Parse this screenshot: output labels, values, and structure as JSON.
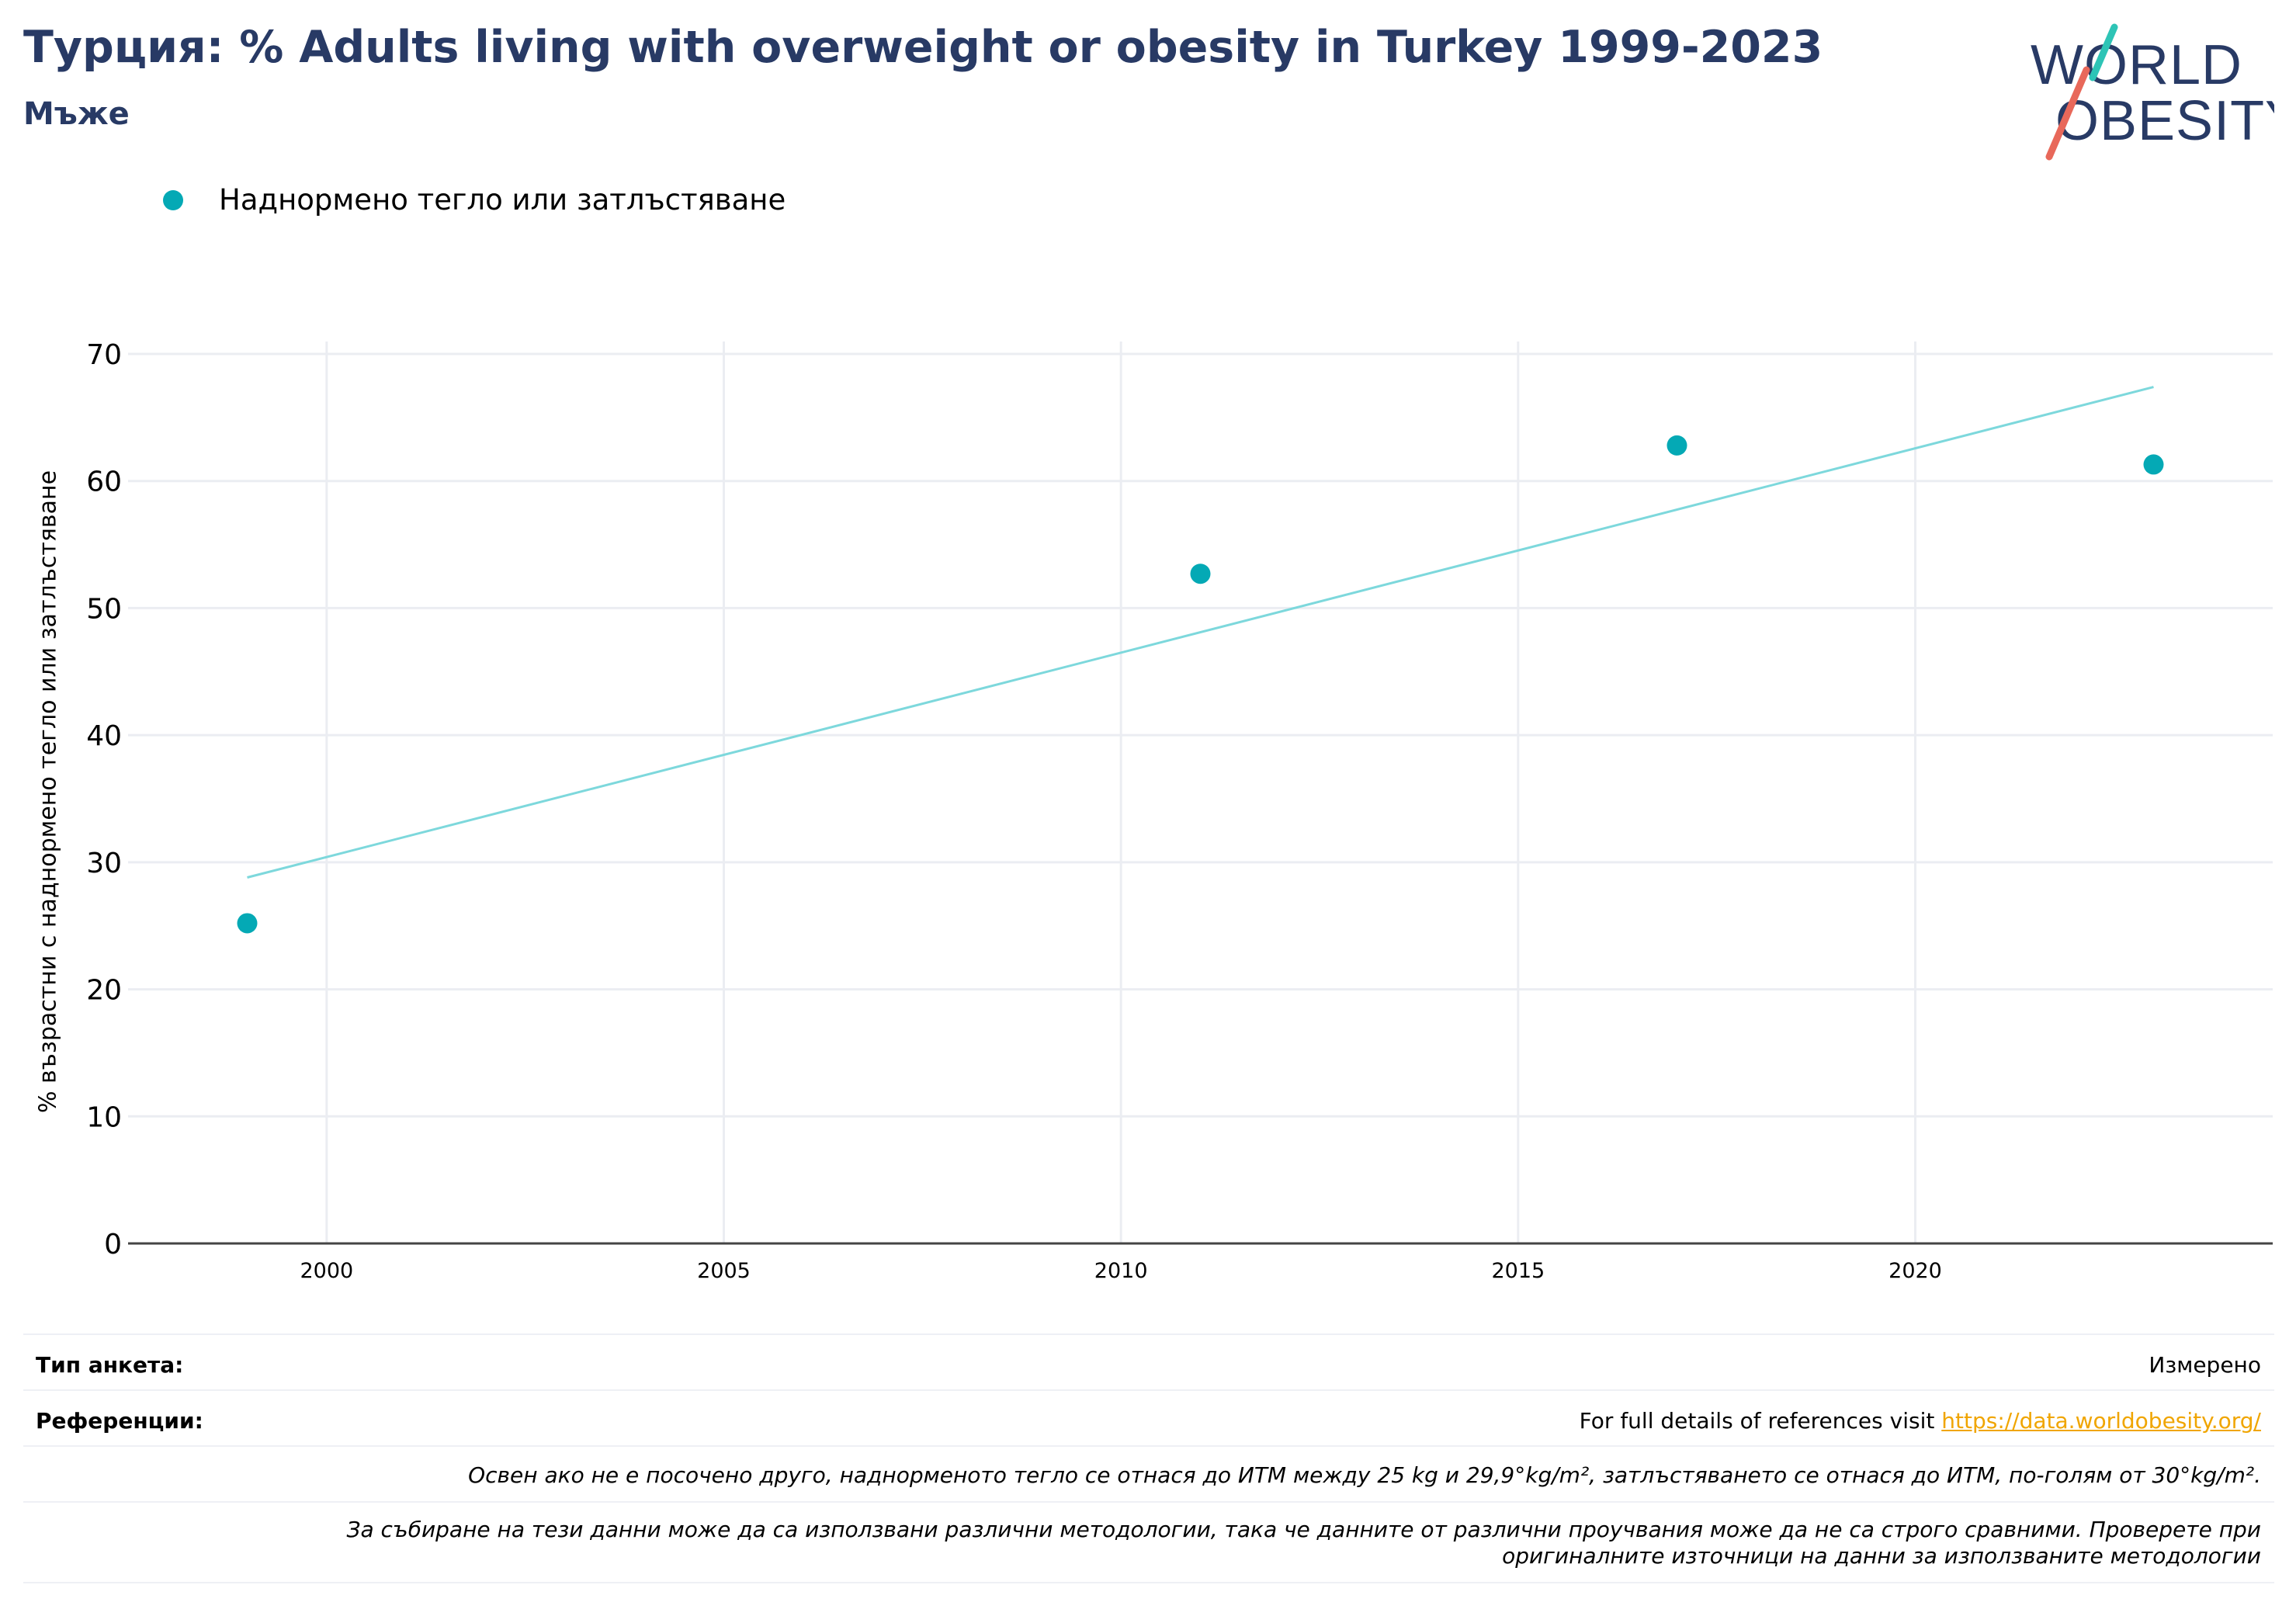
{
  "header": {
    "title": "Турция: % Adults living with overweight or obesity in Turkey 1999-2023",
    "subtitle": "Мъже"
  },
  "logo": {
    "line1": "WORLD",
    "line2": "OBESITY",
    "colors": {
      "text": "#283a65",
      "slash_top": "#2ec4b6",
      "slash_bottom": "#e8685a"
    }
  },
  "legend": {
    "label": "Наднормено тегло или затлъстяване"
  },
  "chart_data": {
    "type": "scatter",
    "ylabel": "% възрастни с наднормено тегло или затлъстяване",
    "xlim": [
      1997.5,
      2024.5
    ],
    "ylim": [
      0,
      70
    ],
    "xticks": [
      2000,
      2005,
      2010,
      2015,
      2020
    ],
    "yticks": [
      0,
      10,
      20,
      30,
      40,
      50,
      60,
      70
    ],
    "grid": true,
    "legend_position": "top-left",
    "series": [
      {
        "name": "Наднормено тегло или затлъстяване",
        "color": "#04a9b5",
        "points": [
          {
            "x": 1999,
            "y": 25.2
          },
          {
            "x": 2011,
            "y": 52.7
          },
          {
            "x": 2017,
            "y": 62.8
          },
          {
            "x": 2023,
            "y": 61.3
          }
        ]
      }
    ],
    "trendline": {
      "color": "#7dd8dc",
      "x": [
        1999,
        2023
      ],
      "y": [
        28.8,
        67.4
      ]
    }
  },
  "footer": {
    "survey_type_label": "Тип анкета:",
    "survey_type_value": "Измерено",
    "references_label": "Референции:",
    "references_text": "For full details of references visit ",
    "references_link": "https://data.worldobesity.org/",
    "note1": "Освен ако не е посочено друго, наднорменото тегло се отнася до ИТМ между 25 kg и 29,9°kg/m², затлъстяването се отнася до ИТМ, по-голям от 30°kg/m².",
    "note2_line1": "За събиране на тези данни може да са използвани различни методологии, така че данните от различни проучвания може да не са строго сравними. Проверете при",
    "note2_line2": "оригиналните източници на данни за използваните методологии"
  }
}
